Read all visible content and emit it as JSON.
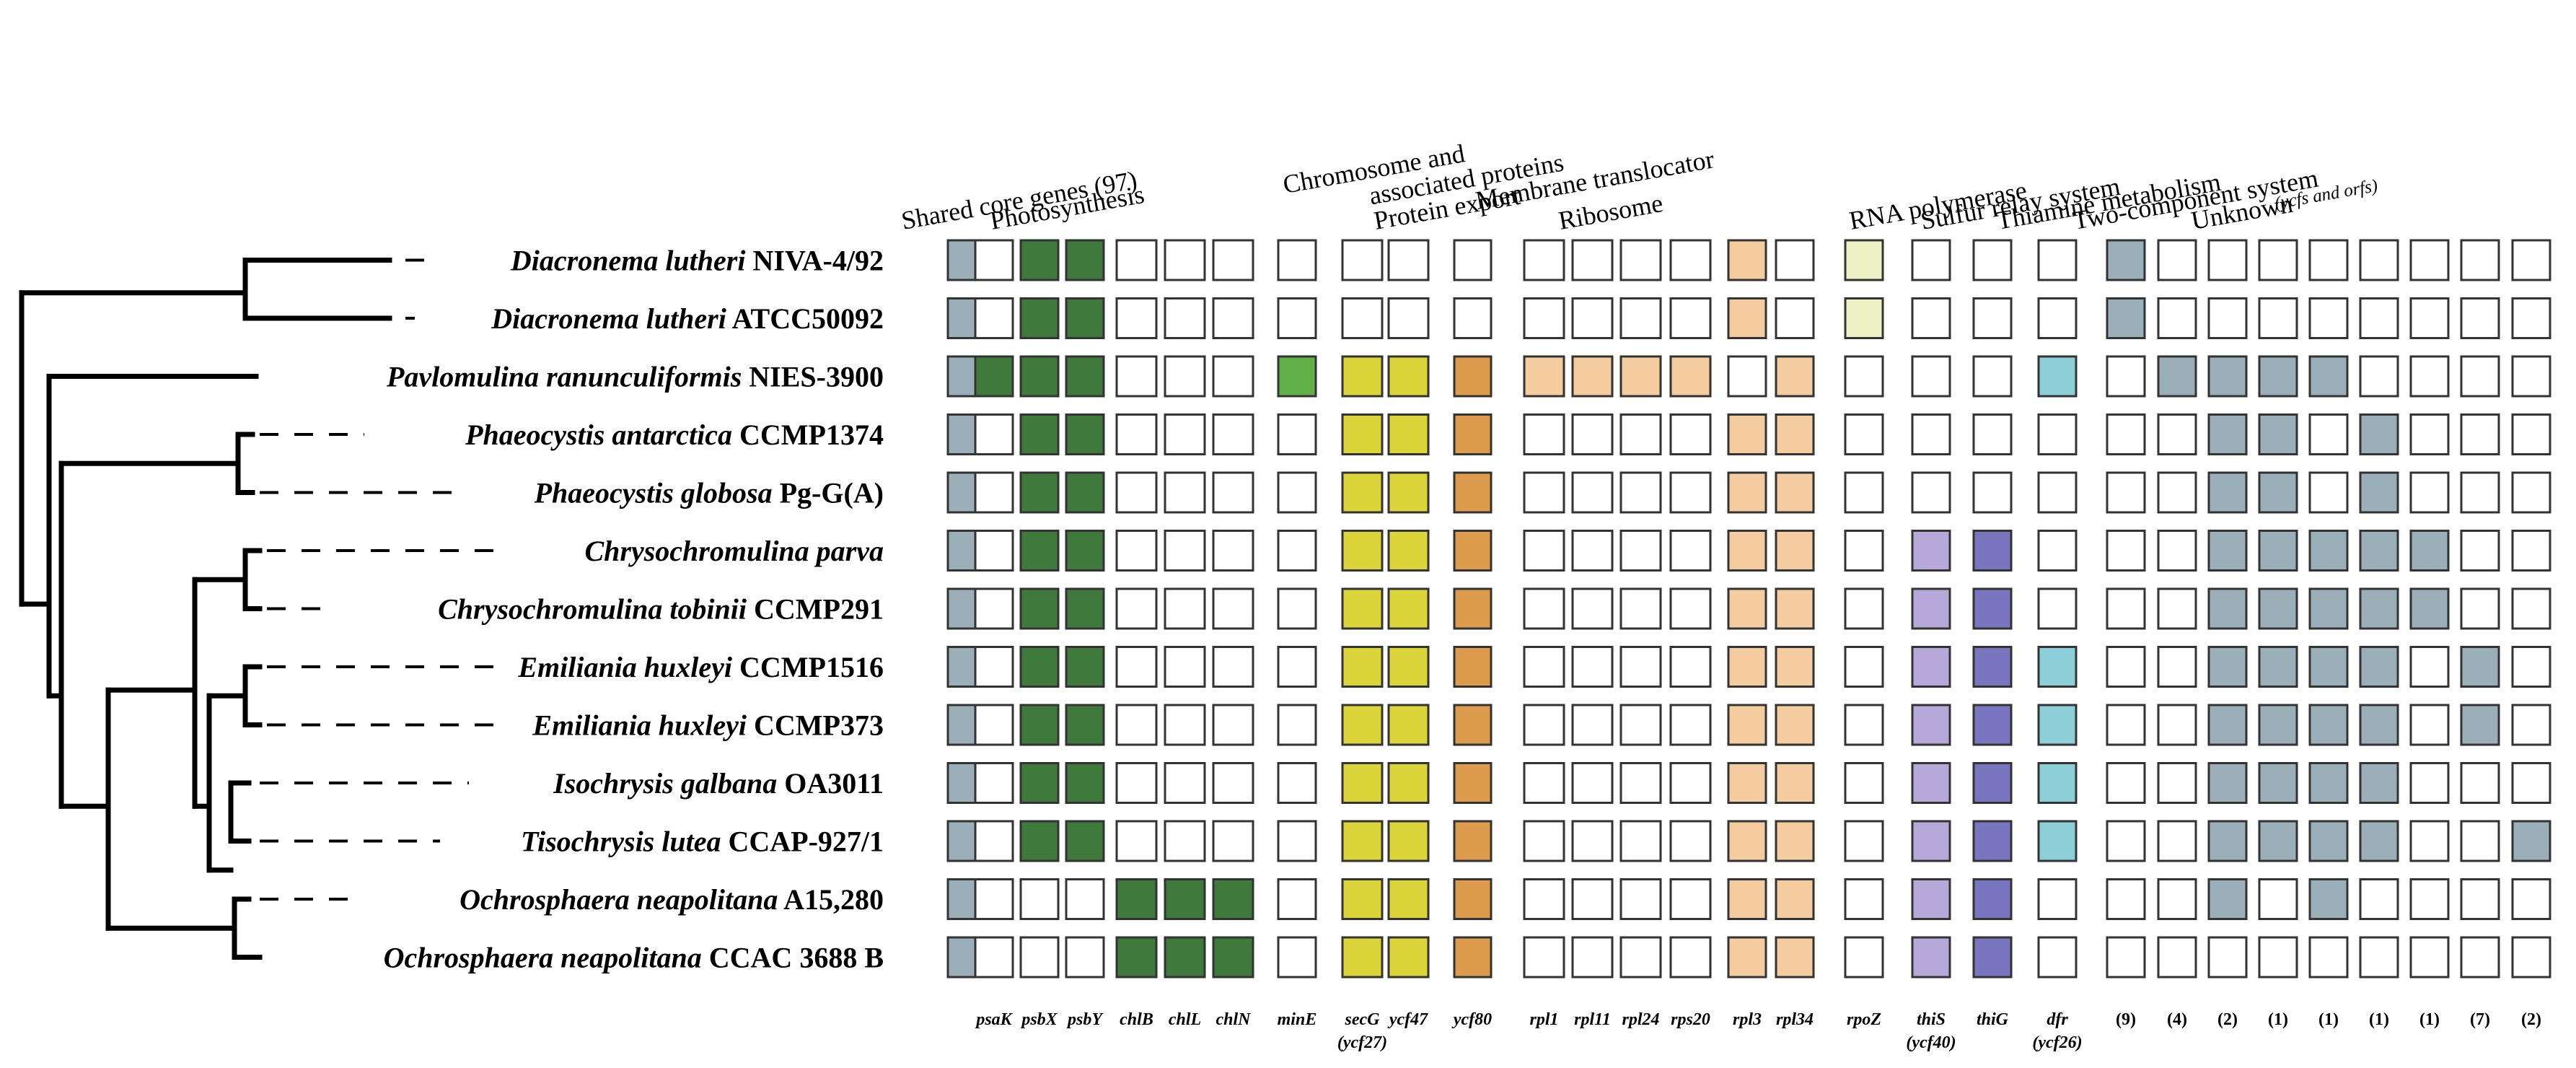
{
  "colors": {
    "empty": "#ffffff",
    "grey": "#9aafb7",
    "darkgreen": "#3f7a3c",
    "green": "#62b048",
    "yellow": "#dbd43a",
    "orange": "#dd9b4e",
    "peach": "#f4cca0",
    "paleyellow": "#eff2c4",
    "lavender": "#b6a8d9",
    "purple": "#7a75bf",
    "cyan": "#8dcfd9"
  },
  "categories": [
    {
      "label": "Shared core genes (97)"
    },
    {
      "label": "Photosynthesis"
    },
    {
      "label": "Chromosome and",
      "label2": "associated proteins"
    },
    {
      "label": "Protein export"
    },
    {
      "label": "Membrane translocator"
    },
    {
      "label": "Ribosome"
    },
    {
      "label": "RNA polymerase"
    },
    {
      "label": "Sulfur relay system"
    },
    {
      "label": "Thiamine metabolism"
    },
    {
      "label": "Two-component system"
    },
    {
      "label": "Unknown",
      "sub": "(ycfs and orfs)"
    }
  ],
  "columns": [
    {
      "label": ""
    },
    {
      "label": "psaK"
    },
    {
      "label": "psbX"
    },
    {
      "label": "psbY"
    },
    {
      "label": "chlB"
    },
    {
      "label": "chlL"
    },
    {
      "label": "chlN"
    },
    {
      "label": "minE"
    },
    {
      "label": "secG",
      "sub": "(ycf27)"
    },
    {
      "label": "ycf47"
    },
    {
      "label": "ycf80"
    },
    {
      "label": "rpl1"
    },
    {
      "label": "rpl11"
    },
    {
      "label": "rpl24"
    },
    {
      "label": "rps20"
    },
    {
      "label": "rpl3"
    },
    {
      "label": "rpl34"
    },
    {
      "label": "rpoZ"
    },
    {
      "label": "thiS",
      "sub": "(ycf40)"
    },
    {
      "label": "thiG"
    },
    {
      "label": "dfr",
      "sub": "(ycf26)"
    },
    {
      "label": "(9)"
    },
    {
      "label": "(4)"
    },
    {
      "label": "(2)"
    },
    {
      "label": "(1)"
    },
    {
      "label": "(1)"
    },
    {
      "label": "(1)"
    },
    {
      "label": "(1)"
    },
    {
      "label": "(7)"
    },
    {
      "label": "(2)"
    }
  ],
  "taxa": [
    {
      "genus_species": "Diacronema lutheri",
      "strain": "NIVA-4/92",
      "cells": [
        "grey",
        "empty",
        "darkgreen",
        "darkgreen",
        "empty",
        "empty",
        "empty",
        "empty",
        "empty",
        "empty",
        "empty",
        "empty",
        "empty",
        "empty",
        "empty",
        "peach",
        "empty",
        "paleyellow",
        "empty",
        "empty",
        "empty",
        "grey",
        "empty",
        "empty",
        "empty",
        "empty",
        "empty",
        "empty",
        "empty",
        "empty"
      ]
    },
    {
      "genus_species": "Diacronema lutheri",
      "strain": "ATCC50092",
      "cells": [
        "grey",
        "empty",
        "darkgreen",
        "darkgreen",
        "empty",
        "empty",
        "empty",
        "empty",
        "empty",
        "empty",
        "empty",
        "empty",
        "empty",
        "empty",
        "empty",
        "peach",
        "empty",
        "paleyellow",
        "empty",
        "empty",
        "empty",
        "grey",
        "empty",
        "empty",
        "empty",
        "empty",
        "empty",
        "empty",
        "empty",
        "empty"
      ]
    },
    {
      "genus_species": "Pavlomulina ranunculiformis",
      "strain": "NIES-3900",
      "cells": [
        "grey",
        "darkgreen",
        "darkgreen",
        "darkgreen",
        "empty",
        "empty",
        "empty",
        "green",
        "yellow",
        "yellow",
        "orange",
        "peach",
        "peach",
        "peach",
        "peach",
        "empty",
        "peach",
        "empty",
        "empty",
        "empty",
        "cyan",
        "empty",
        "grey",
        "grey",
        "grey",
        "grey",
        "empty",
        "empty",
        "empty",
        "empty"
      ]
    },
    {
      "genus_species": "Phaeocystis antarctica",
      "strain": "CCMP1374",
      "cells": [
        "grey",
        "empty",
        "darkgreen",
        "darkgreen",
        "empty",
        "empty",
        "empty",
        "empty",
        "yellow",
        "yellow",
        "orange",
        "empty",
        "empty",
        "empty",
        "empty",
        "peach",
        "peach",
        "empty",
        "empty",
        "empty",
        "empty",
        "empty",
        "empty",
        "grey",
        "grey",
        "empty",
        "grey",
        "empty",
        "empty",
        "empty"
      ]
    },
    {
      "genus_species": "Phaeocystis globosa",
      "strain": "Pg-G(A)",
      "cells": [
        "grey",
        "empty",
        "darkgreen",
        "darkgreen",
        "empty",
        "empty",
        "empty",
        "empty",
        "yellow",
        "yellow",
        "orange",
        "empty",
        "empty",
        "empty",
        "empty",
        "peach",
        "peach",
        "empty",
        "empty",
        "empty",
        "empty",
        "empty",
        "empty",
        "grey",
        "grey",
        "empty",
        "grey",
        "empty",
        "empty",
        "empty"
      ]
    },
    {
      "genus_species": "Chrysochromulina parva",
      "strain": "",
      "cells": [
        "grey",
        "empty",
        "darkgreen",
        "darkgreen",
        "empty",
        "empty",
        "empty",
        "empty",
        "yellow",
        "yellow",
        "orange",
        "empty",
        "empty",
        "empty",
        "empty",
        "peach",
        "peach",
        "empty",
        "lavender",
        "purple",
        "empty",
        "empty",
        "empty",
        "grey",
        "grey",
        "grey",
        "grey",
        "grey",
        "empty",
        "empty"
      ]
    },
    {
      "genus_species": "Chrysochromulina tobinii",
      "strain": "CCMP291",
      "cells": [
        "grey",
        "empty",
        "darkgreen",
        "darkgreen",
        "empty",
        "empty",
        "empty",
        "empty",
        "yellow",
        "yellow",
        "orange",
        "empty",
        "empty",
        "empty",
        "empty",
        "peach",
        "peach",
        "empty",
        "lavender",
        "purple",
        "empty",
        "empty",
        "empty",
        "grey",
        "grey",
        "grey",
        "grey",
        "grey",
        "empty",
        "empty"
      ]
    },
    {
      "genus_species": "Emiliania huxleyi",
      "strain": "CCMP1516",
      "cells": [
        "grey",
        "empty",
        "darkgreen",
        "darkgreen",
        "empty",
        "empty",
        "empty",
        "empty",
        "yellow",
        "yellow",
        "orange",
        "empty",
        "empty",
        "empty",
        "empty",
        "peach",
        "peach",
        "empty",
        "lavender",
        "purple",
        "cyan",
        "empty",
        "empty",
        "grey",
        "grey",
        "grey",
        "grey",
        "empty",
        "grey",
        "empty"
      ]
    },
    {
      "genus_species": "Emiliania huxleyi",
      "strain": "CCMP373",
      "cells": [
        "grey",
        "empty",
        "darkgreen",
        "darkgreen",
        "empty",
        "empty",
        "empty",
        "empty",
        "yellow",
        "yellow",
        "orange",
        "empty",
        "empty",
        "empty",
        "empty",
        "peach",
        "peach",
        "empty",
        "lavender",
        "purple",
        "cyan",
        "empty",
        "empty",
        "grey",
        "grey",
        "grey",
        "grey",
        "empty",
        "grey",
        "empty"
      ]
    },
    {
      "genus_species": "Isochrysis galbana",
      "strain": "OA3011",
      "cells": [
        "grey",
        "empty",
        "darkgreen",
        "darkgreen",
        "empty",
        "empty",
        "empty",
        "empty",
        "yellow",
        "yellow",
        "orange",
        "empty",
        "empty",
        "empty",
        "empty",
        "peach",
        "peach",
        "empty",
        "lavender",
        "purple",
        "cyan",
        "empty",
        "empty",
        "grey",
        "grey",
        "grey",
        "grey",
        "empty",
        "empty",
        "empty"
      ]
    },
    {
      "genus_species": "Tisochrysis lutea",
      "strain": "CCAP-927/1",
      "cells": [
        "grey",
        "empty",
        "darkgreen",
        "darkgreen",
        "empty",
        "empty",
        "empty",
        "empty",
        "yellow",
        "yellow",
        "orange",
        "empty",
        "empty",
        "empty",
        "empty",
        "peach",
        "peach",
        "empty",
        "lavender",
        "purple",
        "cyan",
        "empty",
        "empty",
        "grey",
        "grey",
        "grey",
        "grey",
        "empty",
        "empty",
        "grey"
      ]
    },
    {
      "genus_species": "Ochrosphaera neapolitana",
      "strain": "A15,280",
      "cells": [
        "grey",
        "empty",
        "empty",
        "empty",
        "darkgreen",
        "darkgreen",
        "darkgreen",
        "empty",
        "yellow",
        "yellow",
        "orange",
        "empty",
        "empty",
        "empty",
        "empty",
        "peach",
        "peach",
        "empty",
        "lavender",
        "purple",
        "empty",
        "empty",
        "empty",
        "grey",
        "empty",
        "grey",
        "empty",
        "empty",
        "empty",
        "empty"
      ]
    },
    {
      "genus_species": "Ochrosphaera neapolitana",
      "strain": "CCAC 3688 B",
      "cells": [
        "grey",
        "empty",
        "empty",
        "empty",
        "darkgreen",
        "darkgreen",
        "darkgreen",
        "empty",
        "yellow",
        "yellow",
        "orange",
        "empty",
        "empty",
        "empty",
        "empty",
        "peach",
        "peach",
        "empty",
        "lavender",
        "purple",
        "empty",
        "empty",
        "empty",
        "empty",
        "empty",
        "empty",
        "empty",
        "empty",
        "empty",
        "empty"
      ]
    }
  ]
}
